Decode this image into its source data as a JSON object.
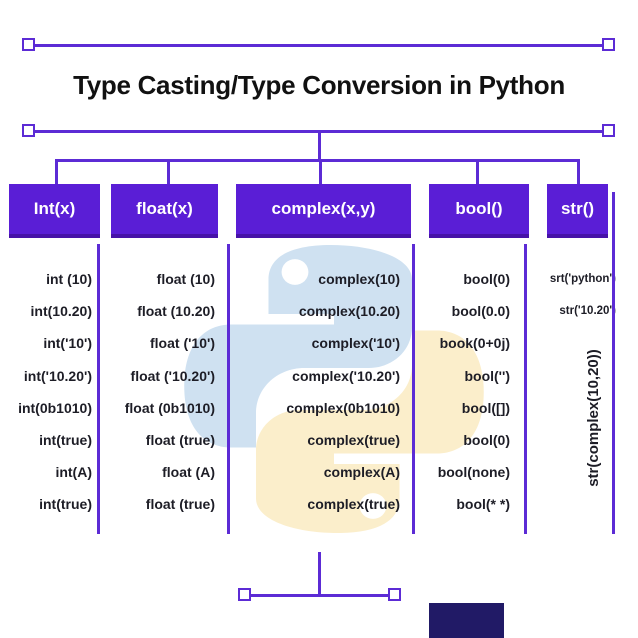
{
  "title": "Type Casting/Type Conversion in Python",
  "colors": {
    "background": "#ffffff",
    "purple_box": "#5a1ed6",
    "purple_line": "#5c2bd5",
    "header_text": "#ffffff",
    "title_text": "#111111",
    "item_text": "#1d1d26",
    "watermark_blue": "#cfe1f1",
    "watermark_yellow": "#fbeecb",
    "bottom_box_navy": "#211a66"
  },
  "columns": [
    {
      "header": "Int(x)",
      "items": [
        "int (10)",
        "int(10.20)",
        "int('10')",
        "int('10.20')",
        "int(0b1010)",
        "int(true)",
        "int(A)",
        "int(true)"
      ]
    },
    {
      "header": "float(x)",
      "items": [
        "float (10)",
        "float (10.20)",
        "float ('10')",
        "float ('10.20')",
        "float (0b1010)",
        "float (true)",
        "float (A)",
        "float (true)"
      ]
    },
    {
      "header": "complex(x,y)",
      "items": [
        "complex(10)",
        "complex(10.20)",
        "complex('10')",
        "complex('10.20')",
        "complex(0b1010)",
        "complex(true)",
        "complex(A)",
        "complex(true)"
      ]
    },
    {
      "header": "bool()",
      "items": [
        "bool(0)",
        "bool(0.0)",
        "book(0+0j)",
        "bool('')",
        "bool([])",
        "bool(0)",
        "bool(none)",
        "bool(* *)"
      ]
    },
    {
      "header": "str()",
      "items": [
        "srt('python')",
        "str('10.20')"
      ],
      "rotated_item": "str(complex(10,20))"
    }
  ],
  "watermark_icon": "python-logo"
}
